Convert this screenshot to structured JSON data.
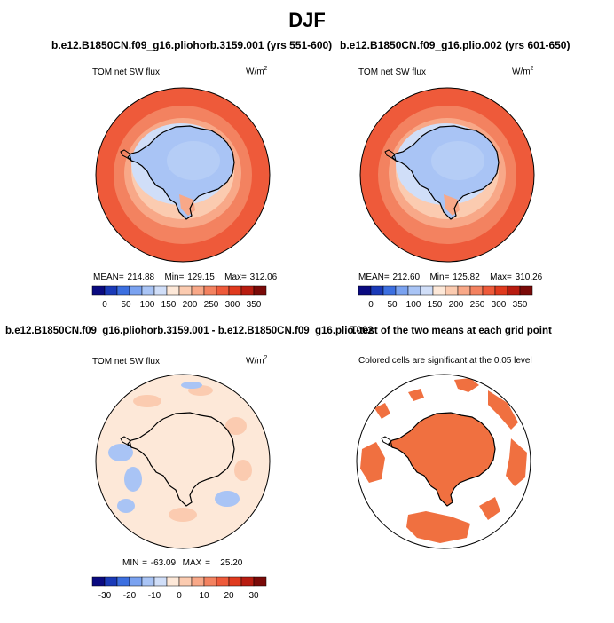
{
  "title": "DJF",
  "panels": [
    {
      "id": "top-left",
      "title": "b.e12.B1850CN.f09_g16.pliohorb.3159.001 (yrs 551-600)",
      "variable": "TOM net SW flux",
      "units": "W/m",
      "units_sup": "2",
      "stats": {
        "mean_label": "MEAN=",
        "mean": "214.88",
        "min_label": "Min=",
        "min": "129.15",
        "max_label": "Max=",
        "max": "312.06"
      }
    },
    {
      "id": "top-right",
      "title": "b.e12.B1850CN.f09_g16.plio.002 (yrs 601-650)",
      "variable": "TOM net SW flux",
      "units": "W/m",
      "units_sup": "2",
      "stats": {
        "mean_label": "MEAN=",
        "mean": "212.60",
        "min_label": "Min=",
        "min": "125.82",
        "max_label": "Max=",
        "max": "310.26"
      }
    },
    {
      "id": "bottom-left",
      "title": "b.e12.B1850CN.f09_g16.pliohorb.3159.001 - b.e12.B1850CN.f09_g16.plio.002",
      "variable": "TOM net SW flux",
      "units": "W/m",
      "units_sup": "2",
      "stats": {
        "min_label": "MIN =",
        "min": "-63.09",
        "max_label": "MAX =",
        "max": "25.20"
      }
    },
    {
      "id": "bottom-right",
      "title": "T-test of the two means at each grid point",
      "note": "Colored cells are significant at the 0.05 level"
    }
  ],
  "colorbars": {
    "absolute": {
      "colors": [
        "#0a0a80",
        "#1a3ab8",
        "#3c6fe0",
        "#7aa2f0",
        "#a9c4f5",
        "#d0def8",
        "#fde8d8",
        "#fbcbb0",
        "#f8a888",
        "#f38260",
        "#ee5a3a",
        "#e03a1e",
        "#b81c10",
        "#7a0a08"
      ],
      "tick_labels": [
        "0",
        "50",
        "100",
        "150",
        "200",
        "250",
        "300",
        "350"
      ]
    },
    "difference": {
      "colors": [
        "#0a0a80",
        "#1a3ab8",
        "#3c6fe0",
        "#7aa2f0",
        "#a9c4f5",
        "#d0def8",
        "#fde8d8",
        "#fbcbb0",
        "#f8a888",
        "#f38260",
        "#ee5a3a",
        "#e03a1e",
        "#b81c10",
        "#7a0a08"
      ],
      "tick_labels": [
        "-30",
        "-20",
        "-10",
        "0",
        "10",
        "20",
        "30"
      ]
    }
  },
  "map_colors": {
    "coast": "#000000",
    "ring_outer": "#ee5a3a",
    "ring_2": "#f38260",
    "ring_3": "#f8a888",
    "ring_4": "#fbcbb0",
    "sea_ice": "#d0def8",
    "land_high": "#a9c4f5",
    "land_core": "#b5cdf6",
    "diff_base": "#fde8d8",
    "diff_neg": "#a9c4f5",
    "diff_pos": "#fbcbb0",
    "sig": "#f07040"
  }
}
